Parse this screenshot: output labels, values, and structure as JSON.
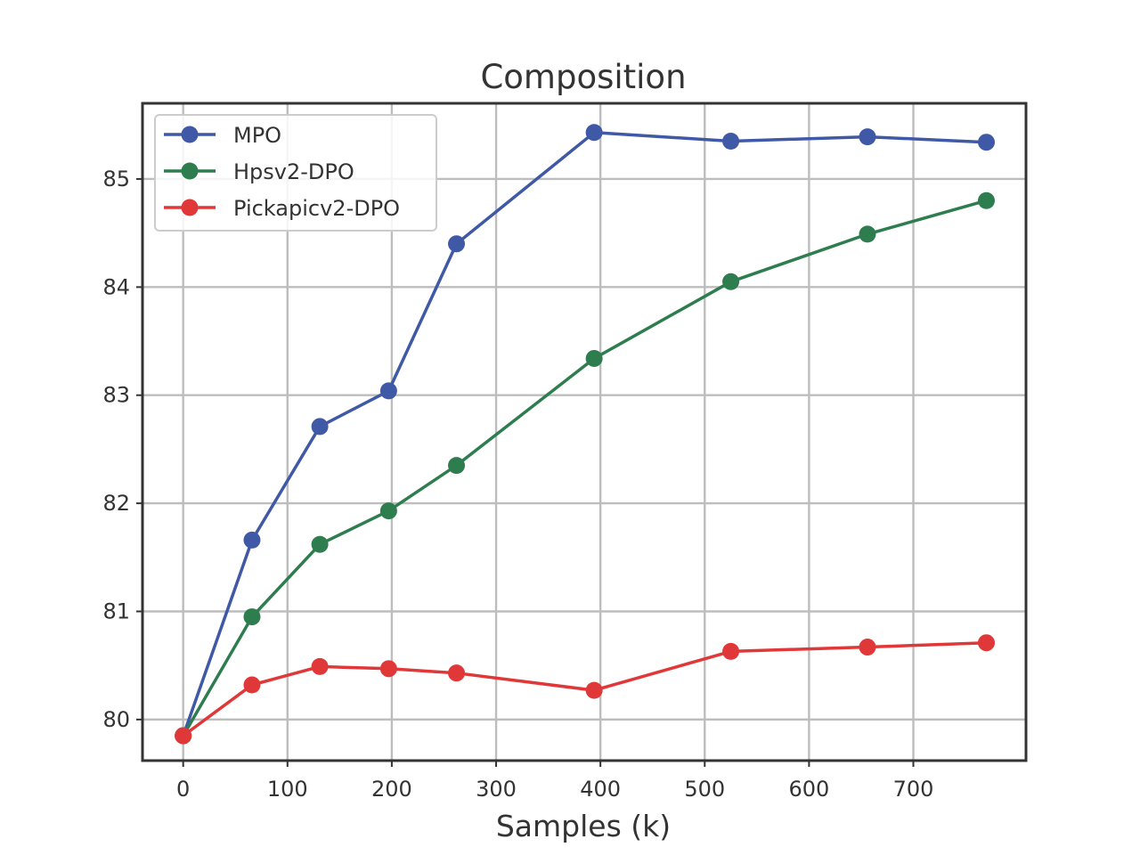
{
  "chart_data": {
    "type": "line",
    "title": "Composition",
    "xlabel": "Samples (k)",
    "ylabel": "",
    "xlim": [
      -39,
      808
    ],
    "ylim": [
      79.62,
      85.7
    ],
    "xticks": [
      0,
      100,
      200,
      300,
      400,
      500,
      600,
      700
    ],
    "yticks": [
      80,
      81,
      82,
      83,
      84,
      85
    ],
    "grid": true,
    "legend_position": "top-left",
    "series": [
      {
        "name": "MPO",
        "color": "#4059a6",
        "x": [
          0,
          66,
          131,
          197,
          262,
          394,
          525,
          656,
          770
        ],
        "y": [
          79.85,
          81.66,
          82.71,
          83.04,
          84.4,
          85.43,
          85.35,
          85.39,
          85.34
        ]
      },
      {
        "name": "Hpsv2-DPO",
        "color": "#2e7d4f",
        "x": [
          0,
          66,
          131,
          197,
          262,
          394,
          525,
          656,
          770
        ],
        "y": [
          79.85,
          80.95,
          81.62,
          81.93,
          82.35,
          83.34,
          84.05,
          84.49,
          84.8
        ]
      },
      {
        "name": "Pickapicv2-DPO",
        "color": "#e03838",
        "x": [
          0,
          66,
          131,
          197,
          262,
          394,
          525,
          656,
          770
        ],
        "y": [
          79.85,
          80.32,
          80.49,
          80.47,
          80.43,
          80.27,
          80.63,
          80.67,
          80.71
        ]
      }
    ]
  }
}
